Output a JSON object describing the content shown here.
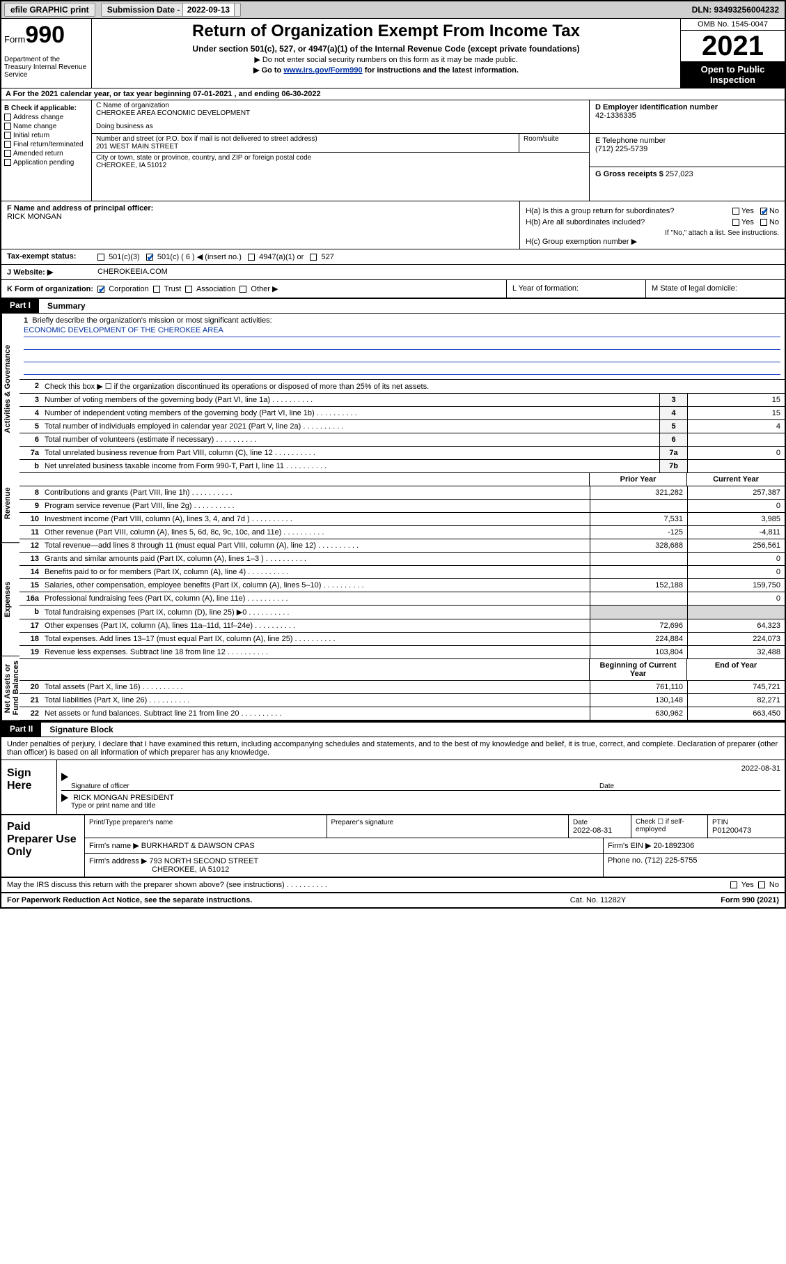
{
  "topbar": {
    "efile": "efile GRAPHIC print",
    "sub_label": "Submission Date - ",
    "sub_date": "2022-09-13",
    "dln": "DLN: 93493256004232"
  },
  "header": {
    "form_prefix": "Form",
    "form_num": "990",
    "dept": "Department of the Treasury Internal Revenue Service",
    "title": "Return of Organization Exempt From Income Tax",
    "sub": "Under section 501(c), 527, or 4947(a)(1) of the Internal Revenue Code (except private foundations)",
    "note1": "▶ Do not enter social security numbers on this form as it may be made public.",
    "note2_pre": "▶ Go to ",
    "note2_link": "www.irs.gov/Form990",
    "note2_post": " for instructions and the latest information.",
    "omb": "OMB No. 1545-0047",
    "year": "2021",
    "open": "Open to Public Inspection"
  },
  "row_a": "A For the 2021 calendar year, or tax year beginning 07-01-2021   , and ending 06-30-2022",
  "section_b": {
    "title": "B Check if applicable:",
    "items": [
      "Address change",
      "Name change",
      "Initial return",
      "Final return/terminated",
      "Amended return",
      "Application pending"
    ]
  },
  "section_c": {
    "name_label": "C Name of organization",
    "name": "CHEROKEE AREA ECONOMIC DEVELOPMENT",
    "dba_label": "Doing business as",
    "addr_label": "Number and street (or P.O. box if mail is not delivered to street address)",
    "room_label": "Room/suite",
    "addr": "201 WEST MAIN STREET",
    "city_label": "City or town, state or province, country, and ZIP or foreign postal code",
    "city": "CHEROKEE, IA  51012"
  },
  "section_d": {
    "ein_label": "D Employer identification number",
    "ein": "42-1336335",
    "phone_label": "E Telephone number",
    "phone": "(712) 225-5739",
    "gross_label": "G Gross receipts $ ",
    "gross": "257,023"
  },
  "section_f": {
    "label": "F  Name and address of principal officer:",
    "name": "RICK MONGAN"
  },
  "section_h": {
    "ha": "H(a)  Is this a group return for subordinates?",
    "hb": "H(b)  Are all subordinates included?",
    "hb_note": "If \"No,\" attach a list. See instructions.",
    "hc": "H(c)  Group exemption number ▶"
  },
  "row_i_label": "Tax-exempt status:",
  "row_i_opts": [
    "501(c)(3)",
    "501(c) ( 6 ) ◀ (insert no.)",
    "4947(a)(1) or",
    "527"
  ],
  "row_j_label": "Website: ▶",
  "row_j_val": "CHEROKEEIA.COM",
  "row_k": {
    "main": "K Form of organization:",
    "opts": [
      "Corporation",
      "Trust",
      "Association",
      "Other ▶"
    ],
    "l": "L Year of formation:",
    "m": "M State of legal domicile:"
  },
  "part1": {
    "label": "Part I",
    "title": "Summary"
  },
  "mission": {
    "q": "Briefly describe the organization's mission or most significant activities:",
    "text": "ECONOMIC DEVELOPMENT OF THE CHEROKEE AREA"
  },
  "gov_rows": [
    {
      "n": "2",
      "t": "Check this box ▶ ☐  if the organization discontinued its operations or disposed of more than 25% of its net assets.",
      "box": "",
      "val": ""
    },
    {
      "n": "3",
      "t": "Number of voting members of the governing body (Part VI, line 1a)",
      "box": "3",
      "val": "15"
    },
    {
      "n": "4",
      "t": "Number of independent voting members of the governing body (Part VI, line 1b)",
      "box": "4",
      "val": "15"
    },
    {
      "n": "5",
      "t": "Total number of individuals employed in calendar year 2021 (Part V, line 2a)",
      "box": "5",
      "val": "4"
    },
    {
      "n": "6",
      "t": "Total number of volunteers (estimate if necessary)",
      "box": "6",
      "val": ""
    },
    {
      "n": "7a",
      "t": "Total unrelated business revenue from Part VIII, column (C), line 12",
      "box": "7a",
      "val": "0"
    },
    {
      "n": "b",
      "t": "Net unrelated business taxable income from Form 990-T, Part I, line 11",
      "box": "7b",
      "val": ""
    }
  ],
  "pycy_hdr": {
    "py": "Prior Year",
    "cy": "Current Year"
  },
  "revenue_rows": [
    {
      "n": "8",
      "t": "Contributions and grants (Part VIII, line 1h)",
      "py": "321,282",
      "cy": "257,387"
    },
    {
      "n": "9",
      "t": "Program service revenue (Part VIII, line 2g)",
      "py": "",
      "cy": "0"
    },
    {
      "n": "10",
      "t": "Investment income (Part VIII, column (A), lines 3, 4, and 7d )",
      "py": "7,531",
      "cy": "3,985"
    },
    {
      "n": "11",
      "t": "Other revenue (Part VIII, column (A), lines 5, 6d, 8c, 9c, 10c, and 11e)",
      "py": "-125",
      "cy": "-4,811"
    },
    {
      "n": "12",
      "t": "Total revenue—add lines 8 through 11 (must equal Part VIII, column (A), line 12)",
      "py": "328,688",
      "cy": "256,561"
    }
  ],
  "expense_rows": [
    {
      "n": "13",
      "t": "Grants and similar amounts paid (Part IX, column (A), lines 1–3 )",
      "py": "",
      "cy": "0"
    },
    {
      "n": "14",
      "t": "Benefits paid to or for members (Part IX, column (A), line 4)",
      "py": "",
      "cy": "0"
    },
    {
      "n": "15",
      "t": "Salaries, other compensation, employee benefits (Part IX, column (A), lines 5–10)",
      "py": "152,188",
      "cy": "159,750"
    },
    {
      "n": "16a",
      "t": "Professional fundraising fees (Part IX, column (A), line 11e)",
      "py": "",
      "cy": "0"
    },
    {
      "n": "b",
      "t": "Total fundraising expenses (Part IX, column (D), line 25) ▶0",
      "py": "shade",
      "cy": "shade"
    },
    {
      "n": "17",
      "t": "Other expenses (Part IX, column (A), lines 11a–11d, 11f–24e)",
      "py": "72,696",
      "cy": "64,323"
    },
    {
      "n": "18",
      "t": "Total expenses. Add lines 13–17 (must equal Part IX, column (A), line 25)",
      "py": "224,884",
      "cy": "224,073"
    },
    {
      "n": "19",
      "t": "Revenue less expenses. Subtract line 18 from line 12",
      "py": "103,804",
      "cy": "32,488"
    }
  ],
  "bal_hdr": {
    "b": "Beginning of Current Year",
    "e": "End of Year"
  },
  "balance_rows": [
    {
      "n": "20",
      "t": "Total assets (Part X, line 16)",
      "py": "761,110",
      "cy": "745,721"
    },
    {
      "n": "21",
      "t": "Total liabilities (Part X, line 26)",
      "py": "130,148",
      "cy": "82,271"
    },
    {
      "n": "22",
      "t": "Net assets or fund balances. Subtract line 21 from line 20",
      "py": "630,962",
      "cy": "663,450"
    }
  ],
  "side_tabs": {
    "gov": "Activities & Governance",
    "rev": "Revenue",
    "exp": "Expenses",
    "bal": "Net Assets or Fund Balances"
  },
  "part2": {
    "label": "Part II",
    "title": "Signature Block"
  },
  "sig_intro": "Under penalties of perjury, I declare that I have examined this return, including accompanying schedules and statements, and to the best of my knowledge and belief, it is true, correct, and complete. Declaration of preparer (other than officer) is based on all information of which preparer has any knowledge.",
  "sign": {
    "here": "Sign Here",
    "date": "2022-08-31",
    "sig_label": "Signature of officer",
    "date_label": "Date",
    "name": "RICK MONGAN  PRESIDENT",
    "name_label": "Type or print name and title"
  },
  "prep": {
    "title": "Paid Preparer Use Only",
    "h1": "Print/Type preparer's name",
    "h2": "Preparer's signature",
    "h3": "Date",
    "date": "2022-08-31",
    "h4": "Check ☐ if self-employed",
    "h5": "PTIN",
    "ptin": "P01200473",
    "firm_label": "Firm's name   ▶",
    "firm": "BURKHARDT & DAWSON CPAS",
    "ein_label": "Firm's EIN ▶",
    "ein": "20-1892306",
    "addr_label": "Firm's address ▶",
    "addr1": "793 NORTH SECOND STREET",
    "addr2": "CHEROKEE, IA  51012",
    "phone_label": "Phone no.",
    "phone": "(712) 225-5755"
  },
  "may_irs": "May the IRS discuss this return with the preparer shown above? (see instructions)",
  "footer": {
    "f1": "For Paperwork Reduction Act Notice, see the separate instructions.",
    "f2": "Cat. No. 11282Y",
    "f3": "Form 990 (2021)"
  }
}
